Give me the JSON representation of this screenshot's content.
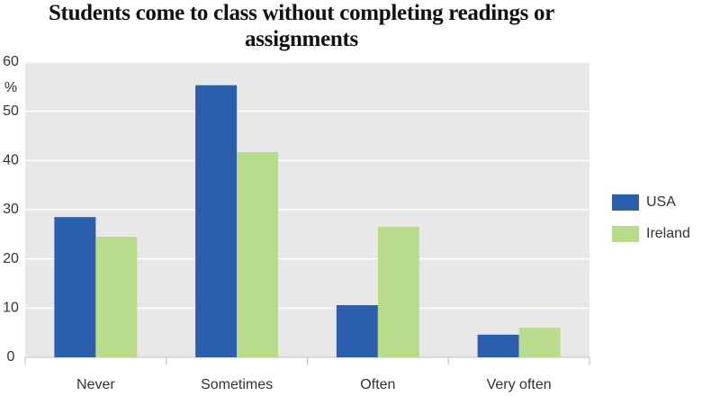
{
  "chart_data": {
    "type": "bar",
    "title": "Students come to class without completing readings or assignments",
    "y_label": "%",
    "categories": [
      "Never",
      "Sometimes",
      "Often",
      "Very often"
    ],
    "series": [
      {
        "name": "USA",
        "color": "#2b5fad",
        "values": [
          28.5,
          55.3,
          10.6,
          4.6
        ]
      },
      {
        "name": "Ireland",
        "color": "#b8dc8c",
        "values": [
          24.5,
          41.7,
          26.5,
          6.0
        ]
      }
    ],
    "ylim": [
      0,
      60
    ],
    "yticks": [
      0,
      10,
      20,
      30,
      40,
      50,
      60
    ],
    "grid": true,
    "legend": "right"
  }
}
